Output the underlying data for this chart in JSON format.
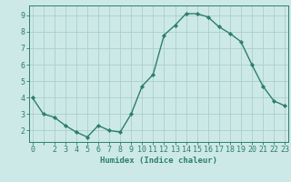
{
  "x": [
    0,
    1,
    2,
    3,
    4,
    5,
    6,
    7,
    8,
    9,
    10,
    11,
    12,
    13,
    14,
    15,
    16,
    17,
    18,
    19,
    20,
    21,
    22,
    23
  ],
  "y": [
    4.0,
    3.0,
    2.8,
    2.3,
    1.9,
    1.6,
    2.3,
    2.0,
    1.9,
    3.0,
    4.7,
    5.4,
    7.8,
    8.4,
    9.1,
    9.1,
    8.9,
    8.3,
    7.9,
    7.4,
    6.0,
    4.7,
    3.8,
    3.5
  ],
  "line_color": "#2e7d6e",
  "marker": "D",
  "marker_size": 2.2,
  "bg_color": "#cce9e8",
  "grid_color": "#aacfce",
  "axis_color": "#2e7d6e",
  "xlabel": "Humidex (Indice chaleur)",
  "xlim": [
    -0.3,
    23.3
  ],
  "ylim": [
    1.3,
    9.6
  ],
  "yticks": [
    2,
    3,
    4,
    5,
    6,
    7,
    8,
    9
  ],
  "xticks": [
    0,
    2,
    3,
    4,
    5,
    6,
    7,
    8,
    9,
    10,
    11,
    12,
    13,
    14,
    15,
    16,
    17,
    18,
    19,
    20,
    21,
    22,
    23
  ],
  "xlabel_fontsize": 6.5,
  "tick_fontsize": 6.0,
  "line_width": 1.0
}
